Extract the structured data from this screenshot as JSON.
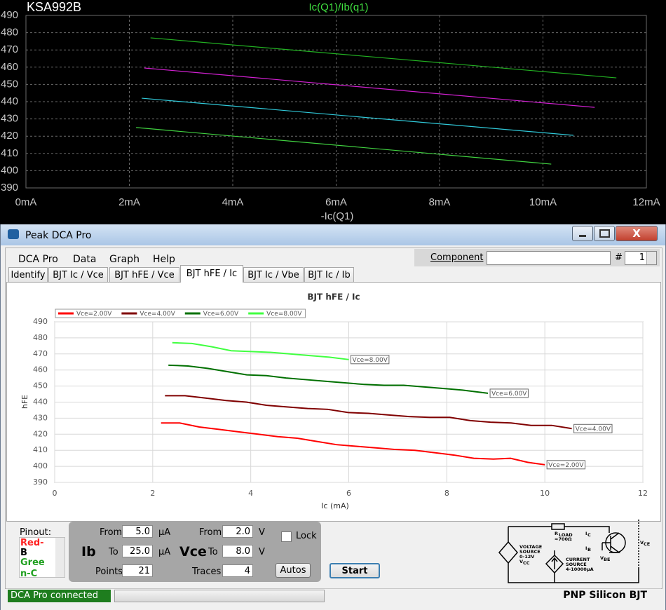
{
  "chart_data": [
    {
      "type": "line",
      "title": "KSA992B",
      "subtitle": "Ic(Q1)/Ib(q1)",
      "x_label": "-Ic(Q1)",
      "xlim": [
        0,
        12
      ],
      "xticks": [
        {
          "value": 0,
          "label": "0mA"
        },
        {
          "value": 2,
          "label": "2mA"
        },
        {
          "value": 4,
          "label": "4mA"
        },
        {
          "value": 6,
          "label": "6mA"
        },
        {
          "value": 8,
          "label": "8mA"
        },
        {
          "value": 10,
          "label": "10mA"
        },
        {
          "value": 12,
          "label": "12mA"
        }
      ],
      "ylim": [
        390,
        490
      ],
      "yticks": [
        390,
        400,
        410,
        420,
        430,
        440,
        450,
        460,
        470,
        480,
        490
      ],
      "grid": true,
      "background": "#000000",
      "series": [
        {
          "color": "#22b022",
          "x": [
            2.41,
            11.42
          ],
          "values": [
            477,
            453.8
          ]
        },
        {
          "color": "#d020d0",
          "x": [
            2.29,
            11.0
          ],
          "values": [
            459.5,
            436.7
          ]
        },
        {
          "color": "#30c8d8",
          "x": [
            2.24,
            10.59
          ],
          "values": [
            442,
            420.5
          ]
        },
        {
          "color": "#40d040",
          "x": [
            2.13,
            10.16
          ],
          "values": [
            425,
            403.8
          ]
        }
      ]
    },
    {
      "type": "line",
      "title": "BJT hFE / Ic",
      "x_label": "Ic (mA)",
      "y_label": "hFE",
      "xlim": [
        0,
        12
      ],
      "xticks": [
        0,
        2,
        4,
        6,
        8,
        10,
        12
      ],
      "ylim": [
        390,
        490
      ],
      "yticks": [
        390,
        400,
        410,
        420,
        430,
        440,
        450,
        460,
        470,
        480,
        490
      ],
      "grid": true,
      "legend": "top-left",
      "end_labels": true,
      "series": [
        {
          "name": "Vce=2.00V",
          "color": "#ff0000",
          "x": [
            2.17,
            2.55,
            2.95,
            3.35,
            3.75,
            4.15,
            4.55,
            4.95,
            5.35,
            5.75,
            6.15,
            6.55,
            6.95,
            7.35,
            7.75,
            8.15,
            8.55,
            8.95,
            9.3,
            9.65,
            10.0
          ],
          "values": [
            427,
            427,
            424.5,
            423,
            421.5,
            420,
            418.5,
            417.5,
            415.5,
            413.5,
            412.5,
            411.5,
            410.5,
            410,
            408.5,
            407,
            405,
            404.5,
            405,
            402.5,
            401
          ]
        },
        {
          "name": "Vce=4.00V",
          "color": "#800000",
          "x": [
            2.25,
            2.66,
            3.08,
            3.5,
            3.91,
            4.33,
            4.74,
            5.16,
            5.57,
            5.99,
            6.4,
            6.82,
            7.23,
            7.65,
            8.06,
            8.48,
            8.89,
            9.31,
            9.72,
            10.14,
            10.55
          ],
          "values": [
            444,
            444,
            442.5,
            441,
            440,
            438,
            437,
            436,
            435.5,
            433.5,
            433,
            432,
            431,
            430.5,
            430.5,
            428.5,
            427.5,
            427,
            425.5,
            425.5,
            423.5
          ]
        },
        {
          "name": "Vce=6.00V",
          "color": "#007000",
          "x": [
            2.32,
            2.72,
            3.12,
            3.52,
            3.92,
            4.32,
            4.72,
            5.12,
            5.52,
            5.92,
            6.32,
            6.72,
            7.12,
            7.52,
            7.92,
            8.32,
            8.84
          ],
          "values": [
            463,
            462.5,
            461,
            459,
            457,
            456.5,
            455,
            454,
            453,
            452,
            451,
            450.5,
            450.5,
            449.5,
            448.5,
            447.5,
            445.5
          ]
        },
        {
          "name": "Vce=8.00V",
          "color": "#40ff40",
          "x": [
            2.4,
            2.8,
            3.2,
            3.6,
            4.0,
            4.4,
            4.8,
            5.2,
            5.6,
            6.0
          ],
          "values": [
            477,
            476.5,
            474.5,
            472,
            471.5,
            471,
            470,
            469,
            468,
            466.5
          ]
        }
      ]
    }
  ],
  "window": {
    "title": "Peak DCA Pro"
  },
  "menu": [
    "DCA Pro",
    "Data",
    "Graph",
    "Help"
  ],
  "toolbar": {
    "component_label": "Component",
    "number_label": "#",
    "number": "1"
  },
  "tabs": [
    "Identify",
    "BJT Ic / Vce",
    "BJT hFE / Vce",
    "BJT hFE / Ic",
    "BJT Ic / Vbe",
    "BJT Ic / Ib"
  ],
  "pinout": {
    "label": "Pinout:",
    "lines": [
      "Red-",
      "B",
      "Gree",
      "n-C"
    ]
  },
  "ib_panel": {
    "label": "Ib",
    "from_label": "From",
    "from": "5.0",
    "from_unit": "µA",
    "to_label": "To",
    "to": "25.0",
    "to_unit": "µA",
    "points_label": "Points",
    "points": "21"
  },
  "vce_panel": {
    "label": "Vce",
    "from_label": "From",
    "from": "2.0",
    "from_unit": "V",
    "to_label": "To",
    "to": "8.0",
    "to_unit": "V",
    "traces_label": "Traces",
    "traces": "4"
  },
  "lock": "Lock",
  "autos": "Autos",
  "start": "Start",
  "schematic": {
    "r_load": [
      "R",
      "LOAD"
    ],
    "r_value": "≈700Ω",
    "ic": [
      "I",
      "C"
    ],
    "ib": [
      "I",
      "B"
    ],
    "vbe": [
      "V",
      "BE"
    ],
    "vce": [
      "V",
      "CE"
    ],
    "voltage_source": [
      "VOLTAGE",
      "SOURCE",
      "0-12V"
    ],
    "vcc": [
      "V",
      "CC"
    ],
    "current_source": [
      "CURRENT",
      "SOURCE",
      "4-10000µA"
    ]
  },
  "status": {
    "connection": "DCA Pro connected",
    "device": "PNP Silicon BJT"
  }
}
